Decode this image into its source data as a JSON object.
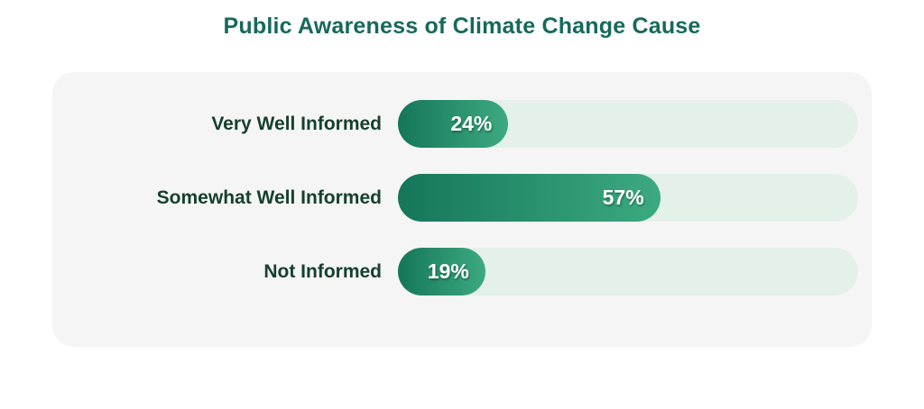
{
  "title": "Public Awareness of Climate Change Cause",
  "colors": {
    "title_color": "#17695c",
    "label_color": "#15402e",
    "card_bg": "#f6f5f6",
    "track_color": "#e3f1e9",
    "bar_start": "#15765a",
    "bar_end": "#3caa80",
    "value_color": "#ffffff"
  },
  "chart_data": {
    "type": "bar",
    "orientation": "horizontal",
    "title": "Public Awareness of Climate Change Cause",
    "categories": [
      "Very Well Informed",
      "Somewhat Well Informed",
      "Not Informed"
    ],
    "values": [
      24,
      57,
      19
    ],
    "value_labels": [
      "24%",
      "57%",
      "19%"
    ],
    "unit": "%",
    "xlabel": "",
    "ylabel": "",
    "xlim": [
      0,
      100
    ],
    "grid": false,
    "legend": false
  }
}
